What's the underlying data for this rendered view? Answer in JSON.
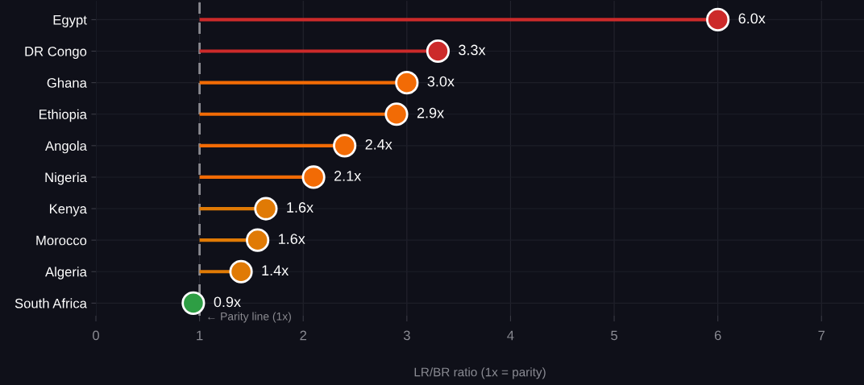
{
  "chart_data": {
    "type": "lollipop",
    "orientation": "horizontal",
    "xlabel": "LR/BR ratio (1x = parity)",
    "categories": [
      "Egypt",
      "DR Congo",
      "Ghana",
      "Ethiopia",
      "Angola",
      "Nigeria",
      "Kenya",
      "Morocco",
      "Algeria",
      "South Africa"
    ],
    "values": [
      6.0,
      3.3,
      3.0,
      2.9,
      2.4,
      2.1,
      1.64,
      1.56,
      1.4,
      0.94
    ],
    "errors": [
      [
        1,
        6.0
      ],
      [
        1,
        3.3
      ],
      [
        1,
        3.0
      ],
      [
        1,
        2.9
      ],
      [
        1,
        2.4
      ],
      [
        1,
        2.1
      ],
      [
        1,
        1.64
      ],
      [
        1,
        1.56
      ],
      [
        1,
        1.4
      ],
      null
    ],
    "colors": [
      "#cc2a2a",
      "#cc2a2a",
      "#f26b05",
      "#f26b05",
      "#f26b05",
      "#f26b05",
      "#e07a05",
      "#e07a05",
      "#e07a05",
      "#2e9e44"
    ],
    "value_labels": [
      "6.0x",
      "3.3x",
      "3.0x",
      "2.9x",
      "2.4x",
      "2.1x",
      "1.6x",
      "1.6x",
      "1.4x",
      "0.9x"
    ],
    "xlim": [
      0,
      7.41
    ],
    "xticks": [
      0,
      1,
      2,
      3,
      4,
      5,
      6,
      7
    ],
    "ref_lines": [
      {
        "axis": "x",
        "value": 1,
        "label": "← Parity line (1x)",
        "color": "#8a8a90",
        "line_style": "dashed"
      }
    ],
    "grid": true,
    "marker": "circle"
  }
}
